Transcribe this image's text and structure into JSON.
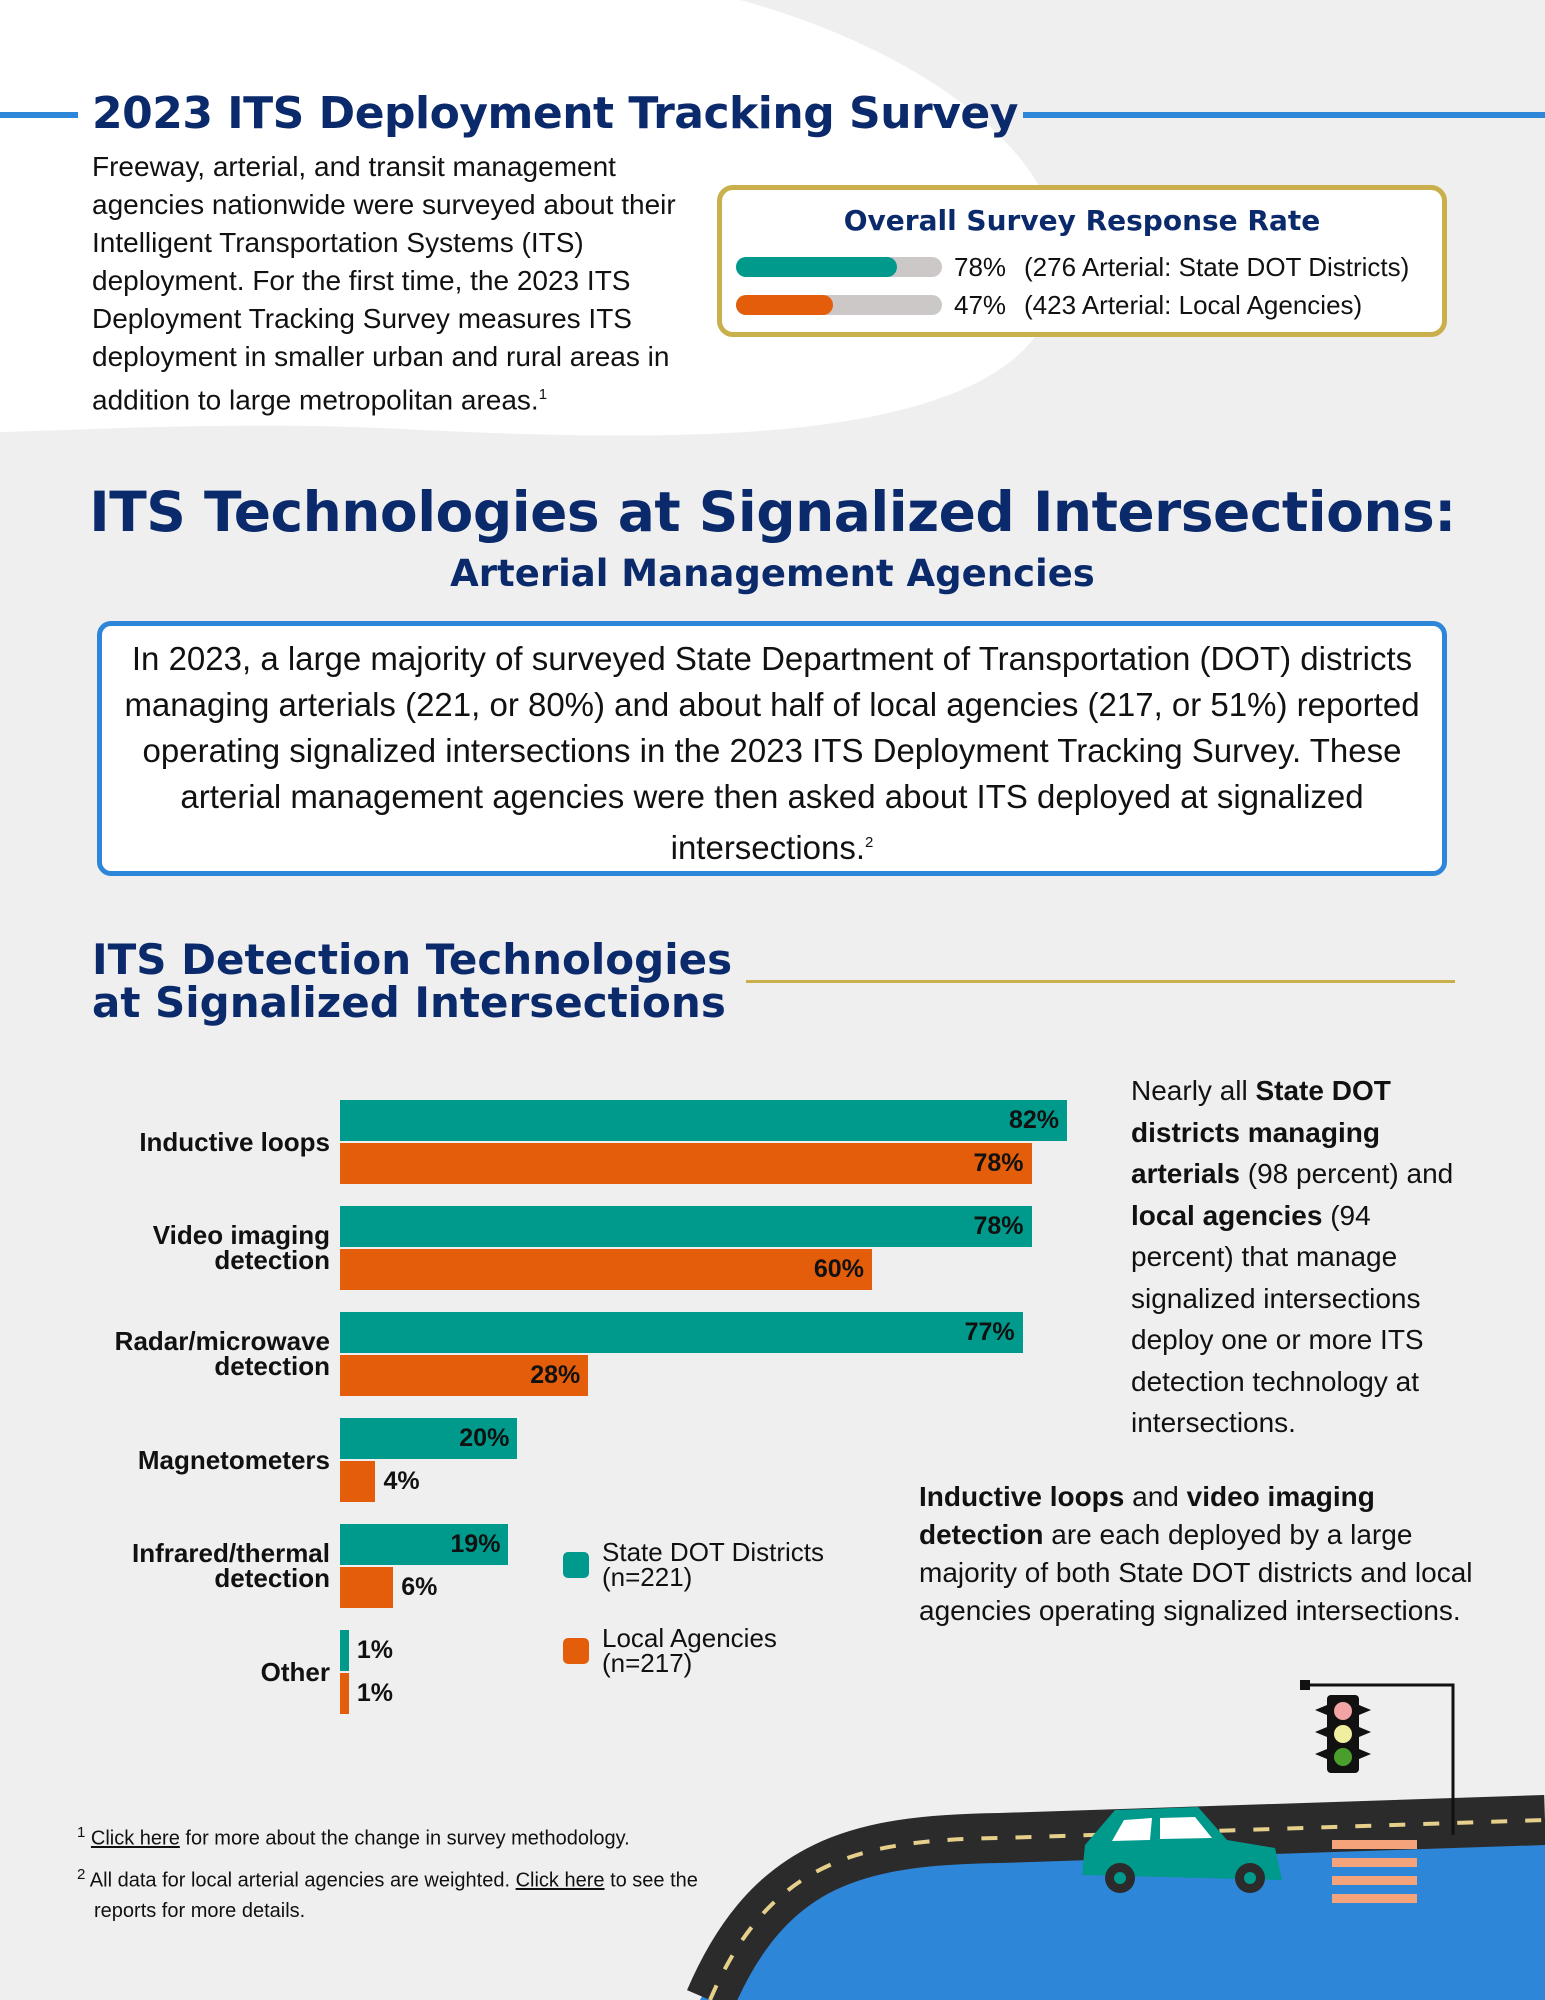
{
  "header": {
    "title": "2023 ITS Deployment Tracking Survey",
    "intro": "Freeway, arterial, and transit management agencies nationwide were surveyed about their Intelligent Transportation Systems (ITS) deployment. For the first time, the 2023 ITS Deployment Tracking Survey measures ITS deployment in smaller urban and rural areas in addition to large metropolitan areas.",
    "intro_sup": "1"
  },
  "response_rate": {
    "title": "Overall Survey Response Rate",
    "rows": [
      {
        "percent_label": "78%",
        "value": 78,
        "desc": "(276 Arterial: State DOT Districts)",
        "color": "#009a8c"
      },
      {
        "percent_label": "47%",
        "value": 47,
        "desc": "(423 Arterial: Local Agencies)",
        "color": "#e35d0a"
      }
    ]
  },
  "main": {
    "title": "ITS Technologies at Signalized Intersections:",
    "subtitle": "Arterial Management Agencies",
    "callout": "In 2023, a large majority of surveyed State Department of Transportation (DOT) districts managing arterials (221, or 80%) and about half of local agencies (217, or 51%) reported operating signalized intersections in the 2023 ITS Deployment Tracking Survey. These arterial management agencies were then asked about ITS deployed at signalized intersections.",
    "callout_sup": "2"
  },
  "section": {
    "title_line1": "ITS Detection Technologies",
    "title_line2": "at Signalized Intersections"
  },
  "chart_data": {
    "type": "bar",
    "orientation": "horizontal",
    "categories": [
      "Inductive loops",
      "Video imaging detection",
      "Radar/microwave detection",
      "Magnetometers",
      "Infrared/thermal detection",
      "Other"
    ],
    "category_lines": [
      [
        "Inductive loops"
      ],
      [
        "Video imaging",
        "detection"
      ],
      [
        "Radar/microwave",
        "detection"
      ],
      [
        "Magnetometers"
      ],
      [
        "Infrared/thermal",
        "detection"
      ],
      [
        "Other"
      ]
    ],
    "series": [
      {
        "name": "State DOT Districts (n=221)",
        "legend_lines": [
          "State DOT Districts",
          "(n=221)"
        ],
        "color": "#009a8c",
        "values": [
          82,
          78,
          77,
          20,
          19,
          1
        ]
      },
      {
        "name": "Local Agencies (n=217)",
        "legend_lines": [
          "Local Agencies",
          "(n=217)"
        ],
        "color": "#e35d0a",
        "values": [
          78,
          60,
          28,
          4,
          6,
          1
        ]
      }
    ],
    "value_format": "percent",
    "xlim": [
      0,
      100
    ],
    "legend_position": "bottom-right"
  },
  "notes": {
    "note1_parts": [
      "Nearly all ",
      "State DOT districts managing arterials",
      " (98 percent) and ",
      "local agencies",
      " (94 percent) that manage signalized intersections deploy one or more ITS detection technology at intersections."
    ],
    "note2_parts": [
      "Inductive loops",
      " and ",
      "video imaging detection",
      " are each deployed by a large majority of both State DOT districts and local agencies operating signalized intersections."
    ]
  },
  "footnotes": [
    {
      "num": "1",
      "link": "Click here",
      "text": " for more about the change in survey methodology."
    },
    {
      "num": "2",
      "pre": "All data for local arterial agencies are weighted. ",
      "link": "Click here",
      "text": " to see the reports for more details."
    }
  ],
  "colors": {
    "navy": "#0b2a6b",
    "teal": "#009a8c",
    "orange": "#e35d0a",
    "blue": "#2e86d9",
    "gold": "#c9b04c"
  },
  "icons": [
    "traffic-light-icon",
    "car-icon",
    "road-illustration"
  ]
}
